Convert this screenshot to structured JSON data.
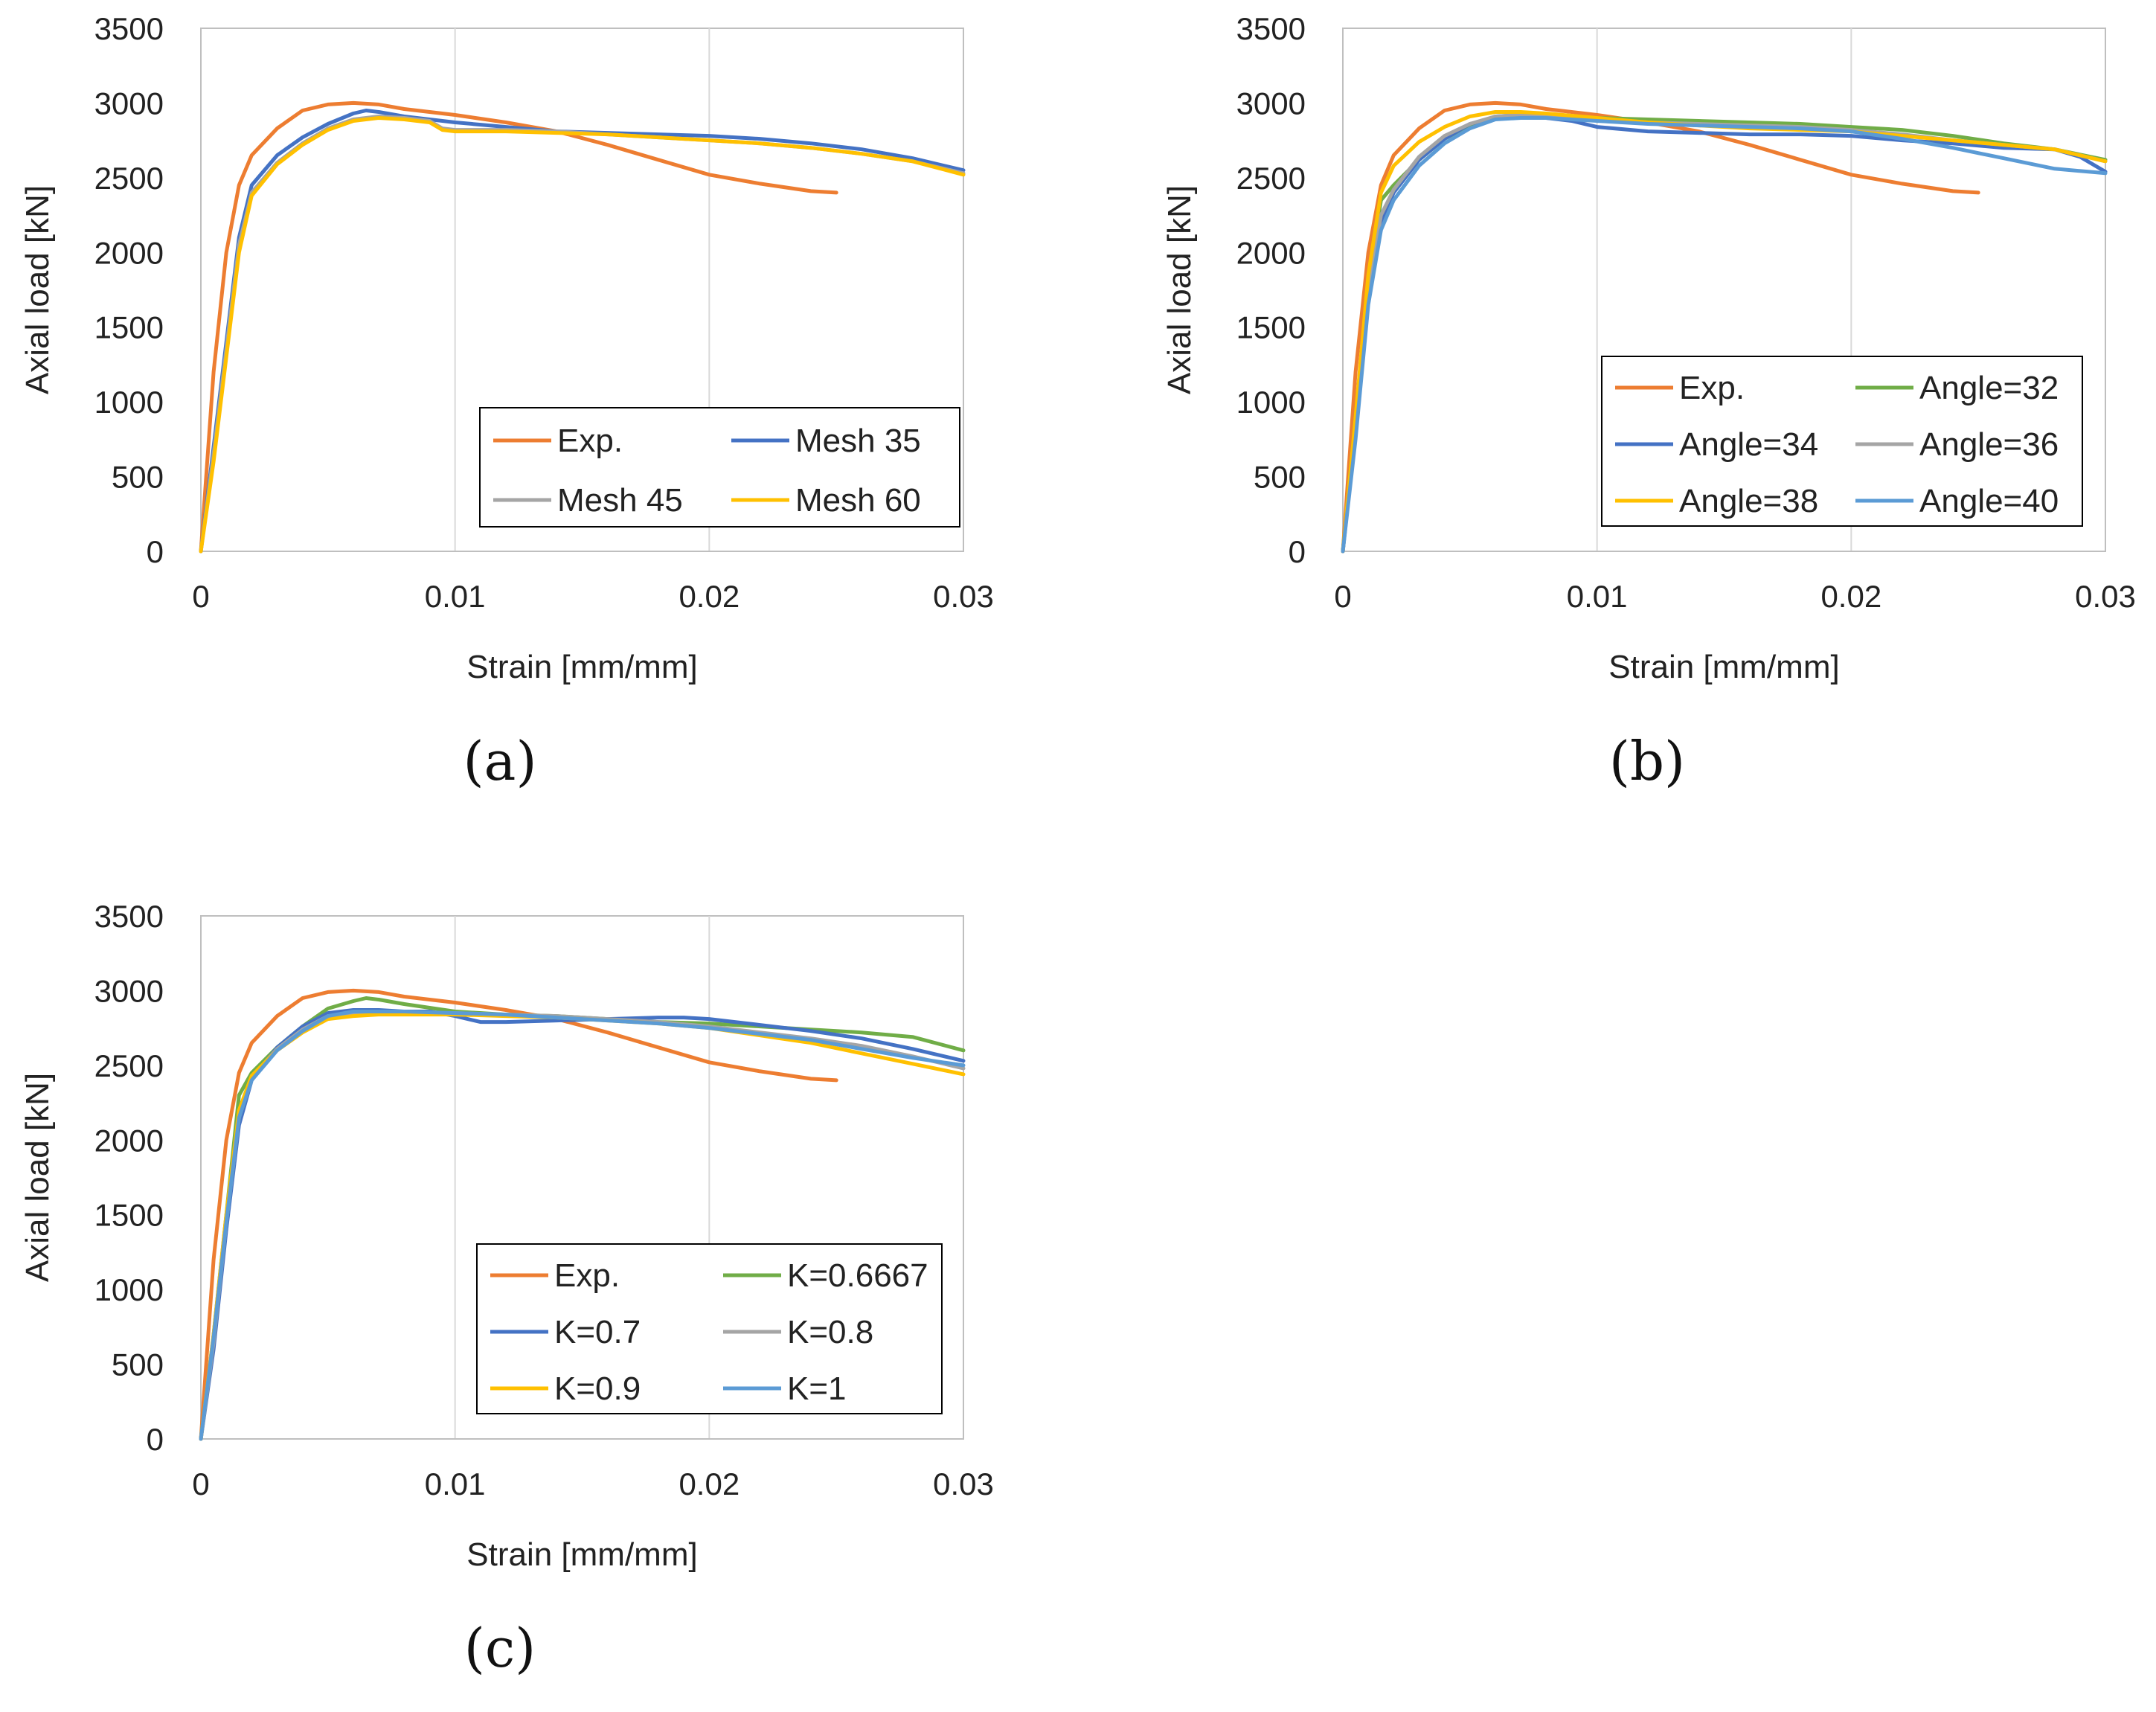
{
  "figure_name": "Axial load vs strain sensitivity figure",
  "colors": {
    "exp": "#ED7D31",
    "blue": "#4472C4",
    "gray": "#A5A5A5",
    "yellow": "#FFC000",
    "green": "#70AD47",
    "lightblue": "#5B9BD5",
    "grid": "#D9D9D9",
    "axis": "#BFBFBF"
  },
  "chart_data": [
    {
      "type": "line",
      "panel": "a",
      "caption": "(a)",
      "title": "",
      "xlabel": "Strain [mm/mm]",
      "ylabel": "Axial load [kN]",
      "xlim": [
        0,
        0.03
      ],
      "ylim": [
        0,
        3500
      ],
      "xticks": [
        0,
        0.01,
        0.02,
        0.03
      ],
      "xtick_labels": [
        "0",
        "0.01",
        "0.02",
        "0.03"
      ],
      "yticks": [
        0,
        500,
        1000,
        1500,
        2000,
        2500,
        3000,
        3500
      ],
      "ytick_labels": [
        "0",
        "500",
        "1000",
        "1500",
        "2000",
        "2500",
        "3000",
        "3500"
      ],
      "grid": "vertical",
      "legend_position": "bottom-right",
      "legend_columns": 2,
      "series": [
        {
          "name": "Exp.",
          "color_key": "exp",
          "x": [
            0,
            0.0005,
            0.001,
            0.0015,
            0.002,
            0.003,
            0.004,
            0.005,
            0.006,
            0.007,
            0.008,
            0.01,
            0.012,
            0.014,
            0.016,
            0.018,
            0.02,
            0.022,
            0.024,
            0.025
          ],
          "y": [
            0,
            1200,
            2000,
            2450,
            2650,
            2830,
            2950,
            2990,
            3000,
            2990,
            2960,
            2920,
            2870,
            2810,
            2720,
            2620,
            2520,
            2460,
            2410,
            2400
          ]
        },
        {
          "name": "Mesh 35",
          "color_key": "blue",
          "x": [
            0,
            0.0005,
            0.001,
            0.0015,
            0.002,
            0.003,
            0.004,
            0.005,
            0.006,
            0.0065,
            0.007,
            0.008,
            0.009,
            0.01,
            0.012,
            0.014,
            0.016,
            0.018,
            0.02,
            0.022,
            0.024,
            0.026,
            0.028,
            0.03
          ],
          "y": [
            0,
            700,
            1400,
            2100,
            2450,
            2650,
            2770,
            2860,
            2930,
            2950,
            2940,
            2910,
            2890,
            2870,
            2840,
            2810,
            2800,
            2790,
            2780,
            2760,
            2730,
            2690,
            2630,
            2550
          ]
        },
        {
          "name": "Mesh 45",
          "color_key": "gray",
          "x": [
            0,
            0.0005,
            0.001,
            0.0015,
            0.002,
            0.003,
            0.004,
            0.005,
            0.006,
            0.007,
            0.008,
            0.009,
            0.0095,
            0.01,
            0.012,
            0.014,
            0.016,
            0.018,
            0.02,
            0.022,
            0.024,
            0.026,
            0.028,
            0.03
          ],
          "y": [
            0,
            650,
            1350,
            2050,
            2400,
            2600,
            2730,
            2830,
            2890,
            2910,
            2900,
            2880,
            2830,
            2820,
            2820,
            2810,
            2790,
            2770,
            2750,
            2730,
            2700,
            2660,
            2610,
            2530
          ]
        },
        {
          "name": "Mesh 60",
          "color_key": "yellow",
          "x": [
            0,
            0.0005,
            0.001,
            0.0015,
            0.002,
            0.003,
            0.004,
            0.005,
            0.006,
            0.007,
            0.008,
            0.009,
            0.0095,
            0.01,
            0.012,
            0.014,
            0.016,
            0.018,
            0.02,
            0.022,
            0.024,
            0.026,
            0.028,
            0.03
          ],
          "y": [
            0,
            600,
            1300,
            2000,
            2380,
            2590,
            2720,
            2820,
            2880,
            2900,
            2890,
            2870,
            2820,
            2810,
            2810,
            2800,
            2790,
            2770,
            2750,
            2730,
            2700,
            2660,
            2610,
            2520
          ]
        }
      ]
    },
    {
      "type": "line",
      "panel": "b",
      "caption": "(b)",
      "title": "",
      "xlabel": "Strain [mm/mm]",
      "ylabel": "Axial load [kN]",
      "xlim": [
        0,
        0.03
      ],
      "ylim": [
        0,
        3500
      ],
      "xticks": [
        0,
        0.01,
        0.02,
        0.03
      ],
      "xtick_labels": [
        "0",
        "0.01",
        "0.02",
        "0.03"
      ],
      "yticks": [
        0,
        500,
        1000,
        1500,
        2000,
        2500,
        3000,
        3500
      ],
      "ytick_labels": [
        "0",
        "500",
        "1000",
        "1500",
        "2000",
        "2500",
        "3000",
        "3500"
      ],
      "grid": "vertical",
      "legend_position": "bottom-right",
      "legend_columns": 2,
      "series": [
        {
          "name": "Exp.",
          "color_key": "exp",
          "x": [
            0,
            0.0005,
            0.001,
            0.0015,
            0.002,
            0.003,
            0.004,
            0.005,
            0.006,
            0.007,
            0.008,
            0.01,
            0.012,
            0.014,
            0.016,
            0.018,
            0.02,
            0.022,
            0.024,
            0.025
          ],
          "y": [
            0,
            1200,
            2000,
            2450,
            2650,
            2830,
            2950,
            2990,
            3000,
            2990,
            2960,
            2920,
            2870,
            2810,
            2720,
            2620,
            2520,
            2460,
            2410,
            2400
          ]
        },
        {
          "name": "Angle=32",
          "color_key": "green",
          "x": [
            0,
            0.0005,
            0.001,
            0.0015,
            0.002,
            0.003,
            0.004,
            0.005,
            0.006,
            0.007,
            0.008,
            0.01,
            0.012,
            0.014,
            0.016,
            0.018,
            0.02,
            0.022,
            0.024,
            0.026,
            0.028,
            0.03
          ],
          "y": [
            0,
            900,
            1800,
            2350,
            2450,
            2620,
            2760,
            2850,
            2910,
            2920,
            2910,
            2900,
            2890,
            2880,
            2870,
            2860,
            2840,
            2820,
            2780,
            2730,
            2690,
            2620
          ]
        },
        {
          "name": "Angle=34",
          "color_key": "blue",
          "x": [
            0,
            0.0005,
            0.001,
            0.0015,
            0.002,
            0.003,
            0.004,
            0.005,
            0.006,
            0.007,
            0.008,
            0.009,
            0.01,
            0.012,
            0.014,
            0.016,
            0.018,
            0.02,
            0.022,
            0.024,
            0.026,
            0.028,
            0.029,
            0.03
          ],
          "y": [
            0,
            800,
            1700,
            2200,
            2400,
            2620,
            2760,
            2860,
            2900,
            2910,
            2900,
            2880,
            2840,
            2810,
            2800,
            2790,
            2790,
            2780,
            2750,
            2730,
            2700,
            2690,
            2640,
            2540
          ]
        },
        {
          "name": "Angle=36",
          "color_key": "gray",
          "x": [
            0,
            0.0005,
            0.001,
            0.0015,
            0.002,
            0.003,
            0.004,
            0.005,
            0.006,
            0.007,
            0.008,
            0.01,
            0.012,
            0.014,
            0.016,
            0.018,
            0.02,
            0.022,
            0.024,
            0.026,
            0.028,
            0.03
          ],
          "y": [
            0,
            850,
            1750,
            2250,
            2420,
            2640,
            2780,
            2860,
            2910,
            2920,
            2910,
            2890,
            2870,
            2860,
            2850,
            2840,
            2820,
            2790,
            2750,
            2720,
            2690,
            2610
          ]
        },
        {
          "name": "Angle=38",
          "color_key": "yellow",
          "x": [
            0,
            0.0005,
            0.001,
            0.0015,
            0.002,
            0.003,
            0.004,
            0.005,
            0.006,
            0.007,
            0.008,
            0.01,
            0.012,
            0.014,
            0.016,
            0.018,
            0.02,
            0.022,
            0.024,
            0.026,
            0.028,
            0.03
          ],
          "y": [
            0,
            900,
            1850,
            2400,
            2580,
            2740,
            2840,
            2910,
            2940,
            2940,
            2930,
            2900,
            2870,
            2850,
            2830,
            2820,
            2810,
            2780,
            2750,
            2720,
            2690,
            2610
          ]
        },
        {
          "name": "Angle=40",
          "color_key": "lightblue",
          "x": [
            0,
            0.0005,
            0.001,
            0.0015,
            0.002,
            0.003,
            0.004,
            0.005,
            0.006,
            0.007,
            0.008,
            0.01,
            0.012,
            0.014,
            0.016,
            0.018,
            0.02,
            0.022,
            0.024,
            0.026,
            0.028,
            0.03
          ],
          "y": [
            0,
            750,
            1650,
            2150,
            2350,
            2580,
            2730,
            2830,
            2890,
            2900,
            2900,
            2880,
            2860,
            2850,
            2840,
            2830,
            2810,
            2760,
            2700,
            2630,
            2560,
            2530
          ]
        }
      ]
    },
    {
      "type": "line",
      "panel": "c",
      "caption": "(c)",
      "title": "",
      "xlabel": "Strain [mm/mm]",
      "ylabel": "Axial load [kN]",
      "xlim": [
        0,
        0.03
      ],
      "ylim": [
        0,
        3500
      ],
      "xticks": [
        0,
        0.01,
        0.02,
        0.03
      ],
      "xtick_labels": [
        "0",
        "0.01",
        "0.02",
        "0.03"
      ],
      "yticks": [
        0,
        500,
        1000,
        1500,
        2000,
        2500,
        3000,
        3500
      ],
      "ytick_labels": [
        "0",
        "500",
        "1000",
        "1500",
        "2000",
        "2500",
        "3000",
        "3500"
      ],
      "grid": "vertical",
      "legend_position": "bottom-right",
      "legend_columns": 2,
      "series": [
        {
          "name": "Exp.",
          "color_key": "exp",
          "x": [
            0,
            0.0005,
            0.001,
            0.0015,
            0.002,
            0.003,
            0.004,
            0.005,
            0.006,
            0.007,
            0.008,
            0.01,
            0.012,
            0.014,
            0.016,
            0.018,
            0.02,
            0.022,
            0.024,
            0.025
          ],
          "y": [
            0,
            1200,
            2000,
            2450,
            2650,
            2830,
            2950,
            2990,
            3000,
            2990,
            2960,
            2920,
            2870,
            2810,
            2720,
            2620,
            2520,
            2460,
            2410,
            2400
          ]
        },
        {
          "name": "K=0.6667",
          "color_key": "green",
          "x": [
            0,
            0.0005,
            0.001,
            0.0015,
            0.002,
            0.003,
            0.004,
            0.005,
            0.006,
            0.0065,
            0.007,
            0.008,
            0.01,
            0.012,
            0.014,
            0.016,
            0.018,
            0.02,
            0.022,
            0.024,
            0.026,
            0.028,
            0.03
          ],
          "y": [
            0,
            700,
            1500,
            2300,
            2450,
            2620,
            2760,
            2880,
            2930,
            2950,
            2940,
            2910,
            2860,
            2840,
            2830,
            2810,
            2790,
            2780,
            2760,
            2740,
            2720,
            2690,
            2600
          ]
        },
        {
          "name": "K=0.7",
          "color_key": "blue",
          "x": [
            0,
            0.0005,
            0.001,
            0.0015,
            0.002,
            0.003,
            0.004,
            0.005,
            0.006,
            0.007,
            0.008,
            0.009,
            0.01,
            0.011,
            0.012,
            0.014,
            0.016,
            0.018,
            0.019,
            0.02,
            0.022,
            0.024,
            0.026,
            0.028,
            0.03
          ],
          "y": [
            0,
            600,
            1400,
            2100,
            2400,
            2620,
            2760,
            2850,
            2870,
            2870,
            2860,
            2860,
            2830,
            2790,
            2790,
            2800,
            2810,
            2820,
            2820,
            2810,
            2770,
            2730,
            2680,
            2610,
            2530
          ]
        },
        {
          "name": "K=0.8",
          "color_key": "gray",
          "x": [
            0,
            0.0005,
            0.001,
            0.0015,
            0.002,
            0.003,
            0.004,
            0.005,
            0.006,
            0.007,
            0.008,
            0.01,
            0.012,
            0.014,
            0.016,
            0.018,
            0.02,
            0.022,
            0.024,
            0.026,
            0.028,
            0.03
          ],
          "y": [
            0,
            650,
            1450,
            2150,
            2420,
            2610,
            2740,
            2830,
            2850,
            2850,
            2850,
            2850,
            2840,
            2830,
            2810,
            2790,
            2760,
            2720,
            2680,
            2630,
            2560,
            2480
          ]
        },
        {
          "name": "K=0.9",
          "color_key": "yellow",
          "x": [
            0,
            0.0005,
            0.001,
            0.0015,
            0.002,
            0.003,
            0.004,
            0.005,
            0.006,
            0.007,
            0.008,
            0.01,
            0.012,
            0.014,
            0.016,
            0.018,
            0.02,
            0.022,
            0.024,
            0.026,
            0.028,
            0.03
          ],
          "y": [
            0,
            700,
            1500,
            2200,
            2430,
            2600,
            2720,
            2810,
            2830,
            2840,
            2840,
            2840,
            2830,
            2820,
            2800,
            2780,
            2750,
            2700,
            2650,
            2580,
            2510,
            2440
          ]
        },
        {
          "name": "K=1",
          "color_key": "lightblue",
          "x": [
            0,
            0.0005,
            0.001,
            0.0015,
            0.002,
            0.003,
            0.004,
            0.005,
            0.006,
            0.007,
            0.008,
            0.01,
            0.012,
            0.014,
            0.016,
            0.018,
            0.02,
            0.022,
            0.024,
            0.026,
            0.028,
            0.03
          ],
          "y": [
            0,
            680,
            1450,
            2150,
            2400,
            2600,
            2730,
            2830,
            2860,
            2860,
            2860,
            2850,
            2840,
            2820,
            2800,
            2780,
            2750,
            2710,
            2670,
            2610,
            2550,
            2500
          ]
        }
      ]
    }
  ]
}
